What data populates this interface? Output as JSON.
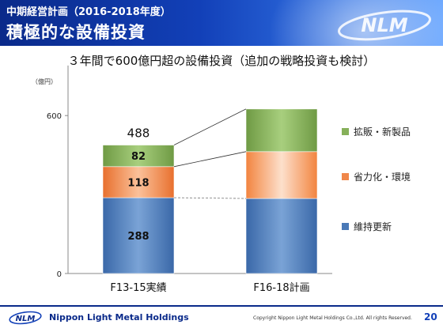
{
  "header": {
    "subtitle": "中期経営計画（2016-2018年度）",
    "title": "積極的な設備投資",
    "logo_text": "NLM"
  },
  "headline": "３年間で600億円超の設備投資（追加の戦略投資も検討）",
  "colors": {
    "header_dark": "#0a2a8a",
    "header_light": "#6aa7ff",
    "maintenance_bar": "#4a79b7",
    "efficiency_bar": "#f0874a",
    "new_products_bar": "#86b05a",
    "efficiency_bar_light": "#fbd3b8",
    "new_products_bar_light": "#8fbe60"
  },
  "chart_data": {
    "type": "bar",
    "stacked": true,
    "ylabel": "（億円）",
    "ylim": [
      0,
      700
    ],
    "yticks": [
      "0",
      "600"
    ],
    "categories": [
      "F13-15実績",
      "F16-18計画"
    ],
    "series": [
      {
        "name": "維持更新",
        "values": [
          288,
          285
        ]
      },
      {
        "name": "省力化・環境",
        "values": [
          118,
          178
        ]
      },
      {
        "name": "拡販・新製品",
        "values": [
          82,
          162
        ]
      }
    ],
    "segment_labels": [
      [
        "288",
        "118",
        "82"
      ],
      [
        "",
        "",
        ""
      ]
    ],
    "totals": [
      "488",
      ""
    ],
    "legend": {
      "position": "right",
      "order": [
        "拡販・新製品",
        "省力化・環境",
        "維持更新"
      ]
    },
    "grid": false
  },
  "footer": {
    "company": "Nippon Light Metal Holdings",
    "copyright": "Copyright Nippon Light Metal Holdings Co.,Ltd. All rights Reserved.",
    "page_number": "20"
  }
}
